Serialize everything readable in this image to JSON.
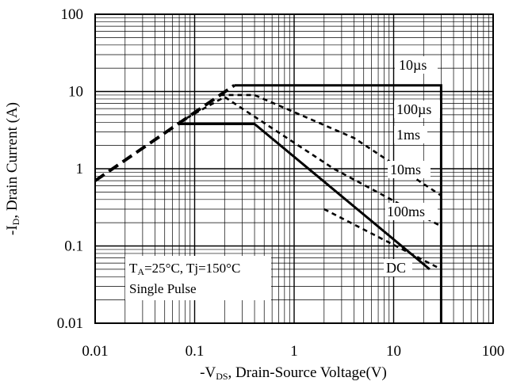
{
  "chart_data": {
    "type": "line",
    "scale": {
      "x": "log",
      "y": "log"
    },
    "xlim": [
      0.01,
      100
    ],
    "ylim": [
      0.01,
      100
    ],
    "x_tick_labels": [
      "0.01",
      "0.1",
      "1",
      "10",
      "100"
    ],
    "y_tick_labels": [
      "100",
      "10",
      "1",
      "0.1",
      "0.01"
    ],
    "xlabel": {
      "prefix": "-V",
      "sub": "DS",
      "rest": ", Drain-Source Voltage(V)"
    },
    "ylabel": {
      "prefix": "-I",
      "sub": "D",
      "rest": ", Drain Current (A)"
    },
    "grid": true,
    "annotation": {
      "line1": {
        "t": "T",
        "a_sub": "A",
        "rest": "=25°C, Tj=150°C"
      },
      "line2": "Single Pulse"
    },
    "series": [
      {
        "name": "10µs",
        "style": "dashed",
        "x": [
          0.01,
          0.25
        ],
        "y": [
          0.7,
          12
        ]
      },
      {
        "name": "10µs",
        "style": "solid",
        "x": [
          0.25,
          30,
          30
        ],
        "y": [
          12,
          12,
          0.01
        ]
      },
      {
        "name": "100µs",
        "style": "dashed",
        "x": [
          0.18,
          0.4,
          4,
          30
        ],
        "y": [
          9,
          9,
          2.5,
          0.45
        ]
      },
      {
        "name": "1ms",
        "style": "dashed",
        "x": [
          0.07,
          0.2,
          2.5,
          30
        ],
        "y": [
          4,
          8.5,
          1,
          0.18
        ]
      },
      {
        "name": "100ms",
        "style": "dashed",
        "x": [
          2,
          30
        ],
        "y": [
          0.3,
          0.05
        ]
      },
      {
        "name": "DC",
        "style": "solid",
        "x": [
          0.07,
          0.4,
          23
        ],
        "y": [
          3.8,
          3.8,
          0.05
        ]
      }
    ],
    "curve_labels": [
      "10µs",
      "100µs",
      "1ms",
      "10ms",
      "100ms",
      "DC"
    ]
  }
}
